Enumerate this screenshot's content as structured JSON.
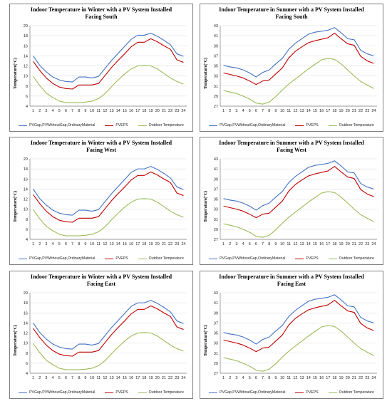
{
  "legend_labels": [
    "PVGap,PVWithoutGap,OrdinaryMaterial",
    "PVEPS",
    "Outdoor Temperature"
  ],
  "colors": {
    "series_blue": "#4472c4",
    "series_red": "#c00000",
    "series_green": "#9bbb59",
    "grid": "#d9d9d9",
    "axis": "#7f7f7f"
  },
  "chart_data": [
    {
      "type": "line",
      "title_line1": "Indoor Temperature in Winter with a PV System Installed",
      "title_line2": "Facing South",
      "ylabel": "Temperature(°C)",
      "x": [
        1,
        2,
        3,
        4,
        5,
        6,
        7,
        8,
        9,
        10,
        11,
        12,
        13,
        14,
        15,
        16,
        17,
        18,
        19,
        20,
        21,
        22,
        23,
        24
      ],
      "ylim": [
        4,
        20
      ],
      "yticks": [
        4,
        6,
        8,
        10,
        12,
        14,
        16,
        18,
        20
      ],
      "series": [
        {
          "name": "PVGap,PVWithoutGap,OrdinaryMaterial",
          "values": [
            14,
            12.1,
            10.8,
            9.8,
            9.2,
            8.9,
            8.8,
            9.8,
            9.8,
            9.6,
            9.9,
            11.5,
            13.1,
            14.5,
            15.9,
            17.3,
            18.1,
            18.1,
            18.5,
            17.9,
            17.1,
            16.2,
            14.4,
            13.9
          ]
        },
        {
          "name": "PVEPS",
          "values": [
            12.9,
            11.1,
            9.6,
            8.5,
            7.8,
            7.5,
            7.4,
            8.2,
            8.2,
            8.2,
            8.5,
            10.1,
            11.7,
            13.1,
            14.4,
            15.8,
            16.7,
            16.7,
            17.4,
            16.8,
            16,
            15.3,
            13.2,
            12.7
          ]
        },
        {
          "name": "Outdoor Temperature",
          "values": [
            9.9,
            8.1,
            6.6,
            5.7,
            5,
            4.7,
            4.7,
            4.7,
            4.8,
            5,
            5.5,
            6.5,
            7.9,
            9.2,
            10.4,
            11.4,
            12,
            12.1,
            12,
            11.4,
            10.5,
            9.6,
            8.9,
            8.4
          ]
        }
      ]
    },
    {
      "type": "line",
      "title_line1": "Indoor Temperature in Summer with a PV System Installed",
      "title_line2": "Facing South",
      "ylabel": "Temperature(°C)",
      "x": [
        1,
        2,
        3,
        4,
        5,
        6,
        7,
        8,
        9,
        10,
        11,
        12,
        13,
        14,
        15,
        16,
        17,
        18,
        19,
        20,
        21,
        22,
        23,
        24
      ],
      "ylim": [
        27,
        43
      ],
      "yticks": [
        27,
        29,
        31,
        33,
        35,
        37,
        39,
        41,
        43
      ],
      "series": [
        {
          "name": "PVGap,PVWithoutGap,OrdinaryMaterial",
          "values": [
            35.1,
            34.8,
            34.6,
            34.2,
            33.6,
            32.8,
            33.7,
            34.2,
            35.4,
            36.5,
            38.3,
            39.5,
            40.4,
            41.3,
            41.7,
            41.9,
            42.1,
            42.6,
            41.6,
            40.4,
            40.2,
            38.1,
            37.4,
            37
          ]
        },
        {
          "name": "PVEPS",
          "values": [
            33.6,
            33.3,
            33,
            32.6,
            32,
            31.3,
            32,
            32.2,
            33.4,
            34.6,
            36.6,
            37.9,
            38.8,
            39.6,
            40,
            40.3,
            40.6,
            41.5,
            40.4,
            39.4,
            39.1,
            36.9,
            36,
            35.5
          ]
        },
        {
          "name": "Outdoor Temperature",
          "values": [
            30.1,
            29.8,
            29.5,
            29,
            28.4,
            27.6,
            27.4,
            27.8,
            28.9,
            30.2,
            31.4,
            32.4,
            33.4,
            34.4,
            35.3,
            36.2,
            36.5,
            36.3,
            35.4,
            34.2,
            33,
            31.9,
            31.2,
            30.5
          ]
        }
      ]
    },
    {
      "type": "line",
      "title_line1": "Indoor Temperature in Winter with a PV System Installed",
      "title_line2": "Facing West",
      "ylabel": "Temperature(°C)",
      "x": [
        1,
        2,
        3,
        4,
        5,
        6,
        7,
        8,
        9,
        10,
        11,
        12,
        13,
        14,
        15,
        16,
        17,
        18,
        19,
        20,
        21,
        22,
        23,
        24
      ],
      "ylim": [
        4,
        20
      ],
      "yticks": [
        4,
        6,
        8,
        10,
        12,
        14,
        16,
        18,
        20
      ],
      "series": [
        {
          "name": "PVGap,PVWithoutGap,OrdinaryMaterial",
          "values": [
            14,
            12.1,
            10.8,
            9.8,
            9.2,
            8.9,
            8.8,
            9.8,
            9.8,
            9.6,
            9.9,
            11.5,
            13.1,
            14.5,
            15.9,
            17.3,
            18,
            18,
            18.5,
            17.9,
            17.1,
            16.2,
            14.4,
            13.9
          ]
        },
        {
          "name": "PVEPS",
          "values": [
            12.9,
            11.1,
            9.6,
            8.5,
            7.8,
            7.5,
            7.4,
            8.2,
            8.2,
            8.2,
            8.5,
            10.1,
            11.7,
            13.1,
            14.4,
            15.8,
            16.7,
            16.7,
            17.4,
            16.8,
            16,
            15.3,
            13.2,
            12.7
          ]
        },
        {
          "name": "Outdoor Temperature",
          "values": [
            9.9,
            8.1,
            6.6,
            5.7,
            5,
            4.7,
            4.7,
            4.7,
            4.8,
            5,
            5.5,
            6.5,
            7.9,
            9.2,
            10.4,
            11.4,
            12,
            12.1,
            12,
            11.4,
            10.5,
            9.6,
            8.9,
            8.4
          ]
        }
      ]
    },
    {
      "type": "line",
      "title_line1": "Indoor Temperature in Summer with a PV System Installed",
      "title_line2": "Facing West",
      "ylabel": "Temperature(°C)",
      "x": [
        1,
        2,
        3,
        4,
        5,
        6,
        7,
        8,
        9,
        10,
        11,
        12,
        13,
        14,
        15,
        16,
        17,
        18,
        19,
        20,
        21,
        22,
        23,
        24
      ],
      "ylim": [
        27,
        43
      ],
      "yticks": [
        27,
        29,
        31,
        33,
        35,
        37,
        39,
        41,
        43
      ],
      "series": [
        {
          "name": "PVGap,PVWithoutGap,OrdinaryMaterial",
          "values": [
            35.1,
            34.8,
            34.6,
            34.2,
            33.6,
            32.8,
            33.7,
            34.2,
            35.4,
            36.5,
            38.3,
            39.5,
            40.4,
            41.3,
            41.7,
            41.9,
            42.1,
            42.6,
            41.6,
            40.4,
            40.2,
            38.1,
            37.4,
            37
          ]
        },
        {
          "name": "PVEPS",
          "values": [
            33.6,
            33.3,
            33,
            32.6,
            32,
            31.3,
            32,
            32.2,
            33.4,
            34.6,
            36.6,
            37.9,
            38.8,
            39.6,
            40,
            40.3,
            40.6,
            41.5,
            40.4,
            39.4,
            39.1,
            36.9,
            36,
            35.5
          ]
        },
        {
          "name": "Outdoor Temperature",
          "values": [
            30.1,
            29.8,
            29.5,
            29,
            28.4,
            27.6,
            27.4,
            27.8,
            28.9,
            30.2,
            31.4,
            32.4,
            33.4,
            34.4,
            35.3,
            36.2,
            36.5,
            36.3,
            35.4,
            34.2,
            33,
            31.9,
            31.2,
            30.5
          ]
        }
      ]
    },
    {
      "type": "line",
      "title_line1": "Indoor Temperature in Winter with a PV System Installed",
      "title_line2": "Facing East",
      "ylabel": "Temperature(°C)",
      "x": [
        1,
        2,
        3,
        4,
        5,
        6,
        7,
        8,
        9,
        10,
        11,
        12,
        13,
        14,
        15,
        16,
        17,
        18,
        19,
        20,
        21,
        22,
        23,
        24
      ],
      "ylim": [
        4,
        20
      ],
      "yticks": [
        4,
        6,
        8,
        10,
        12,
        14,
        16,
        18,
        20
      ],
      "series": [
        {
          "name": "PVGap,PVWithoutGap,OrdinaryMaterial",
          "values": [
            14,
            12.1,
            10.8,
            9.8,
            9.2,
            8.9,
            8.8,
            9.8,
            9.8,
            9.6,
            9.9,
            11.5,
            13.1,
            14.5,
            15.9,
            17.3,
            18,
            18,
            18.5,
            17.9,
            17.1,
            16.2,
            14.4,
            13.9
          ]
        },
        {
          "name": "PVEPS",
          "values": [
            12.9,
            11.1,
            9.6,
            8.5,
            7.8,
            7.5,
            7.4,
            8.2,
            8.2,
            8.2,
            8.5,
            10.1,
            11.7,
            13.1,
            14.4,
            15.8,
            16.7,
            16.7,
            17.4,
            16.8,
            16,
            15.3,
            13.2,
            12.7
          ]
        },
        {
          "name": "Outdoor Temperature",
          "values": [
            9.9,
            8.1,
            6.6,
            5.7,
            5,
            4.7,
            4.7,
            4.7,
            4.8,
            5,
            5.5,
            6.5,
            7.9,
            9.2,
            10.4,
            11.4,
            12,
            12.1,
            12,
            11.4,
            10.5,
            9.6,
            8.9,
            8.4
          ]
        }
      ]
    },
    {
      "type": "line",
      "title_line1": "Indoor Temperature in Summer with a PV System Installed",
      "title_line2": "Facing East",
      "ylabel": "Temperature(°C)",
      "x": [
        1,
        2,
        3,
        4,
        5,
        6,
        7,
        8,
        9,
        10,
        11,
        12,
        13,
        14,
        15,
        16,
        17,
        18,
        19,
        20,
        21,
        22,
        23,
        24
      ],
      "ylim": [
        27,
        43
      ],
      "yticks": [
        27,
        29,
        31,
        33,
        35,
        37,
        39,
        41,
        43
      ],
      "series": [
        {
          "name": "PVGap,PVWithoutGap,OrdinaryMaterial",
          "values": [
            35.1,
            34.8,
            34.6,
            34.2,
            33.6,
            32.8,
            33.7,
            34.2,
            35.4,
            36.5,
            38.3,
            39.5,
            40.4,
            41.3,
            41.7,
            41.9,
            42.1,
            42.6,
            41.6,
            40.4,
            40.2,
            38.1,
            37.4,
            37
          ]
        },
        {
          "name": "PVEPS",
          "values": [
            33.6,
            33.3,
            33,
            32.6,
            32,
            31.3,
            32,
            32.2,
            33.4,
            34.6,
            36.6,
            37.9,
            38.8,
            39.6,
            40,
            40.3,
            40.6,
            41.5,
            40.4,
            39.4,
            39.1,
            36.9,
            36,
            35.5
          ]
        },
        {
          "name": "Outdoor Temperature",
          "values": [
            30.1,
            29.8,
            29.5,
            29,
            28.4,
            27.6,
            27.4,
            27.8,
            28.9,
            30.2,
            31.4,
            32.4,
            33.4,
            34.4,
            35.3,
            36.2,
            36.5,
            36.3,
            35.4,
            34.2,
            33,
            31.9,
            31.2,
            30.5
          ]
        }
      ]
    }
  ]
}
